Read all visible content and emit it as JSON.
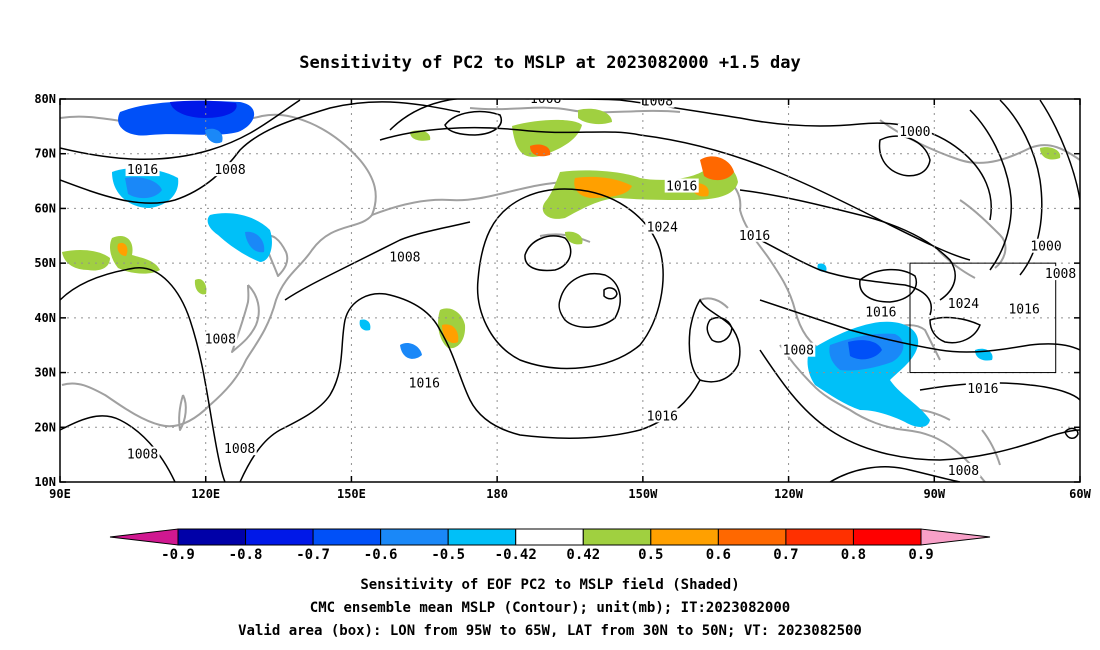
{
  "title": "Sensitivity of PC2 to MSLP at 2023082000 +1.5 day",
  "map": {
    "lon_range": [
      90,
      300
    ],
    "lat_range": [
      10,
      80
    ],
    "x_ticks": [
      {
        "lon": 90,
        "label": "90E"
      },
      {
        "lon": 120,
        "label": "120E"
      },
      {
        "lon": 150,
        "label": "150E"
      },
      {
        "lon": 180,
        "label": "180"
      },
      {
        "lon": 210,
        "label": "150W"
      },
      {
        "lon": 240,
        "label": "120W"
      },
      {
        "lon": 270,
        "label": "90W"
      },
      {
        "lon": 300,
        "label": "60W"
      }
    ],
    "y_ticks": [
      {
        "lat": 10,
        "label": "10N"
      },
      {
        "lat": 20,
        "label": "20N"
      },
      {
        "lat": 30,
        "label": "30N"
      },
      {
        "lat": 40,
        "label": "40N"
      },
      {
        "lat": 50,
        "label": "50N"
      },
      {
        "lat": 60,
        "label": "60N"
      },
      {
        "lat": 70,
        "label": "70N"
      },
      {
        "lat": 80,
        "label": "80N"
      }
    ],
    "grid": "dotted",
    "valid_box": {
      "lon_min": 265,
      "lon_max": 295,
      "lat_min": 30,
      "lat_max": 50
    },
    "contour_labels": [
      {
        "text": "1008",
        "lon": 190,
        "lat": 80
      },
      {
        "text": "1008",
        "lon": 213,
        "lat": 79.5
      },
      {
        "text": "1000",
        "lon": 266,
        "lat": 74
      },
      {
        "text": "1016",
        "lon": 107,
        "lat": 67
      },
      {
        "text": "1008",
        "lon": 125,
        "lat": 67
      },
      {
        "text": "1016",
        "lon": 218,
        "lat": 64
      },
      {
        "text": "1024",
        "lon": 214,
        "lat": 56.5
      },
      {
        "text": "1016",
        "lon": 233,
        "lat": 55
      },
      {
        "text": "1000",
        "lon": 293,
        "lat": 53
      },
      {
        "text": "1008",
        "lon": 296,
        "lat": 48
      },
      {
        "text": "1008",
        "lon": 161,
        "lat": 51
      },
      {
        "text": "1024",
        "lon": 276,
        "lat": 42.5
      },
      {
        "text": "1016",
        "lon": 288.5,
        "lat": 41.5
      },
      {
        "text": "1016",
        "lon": 259,
        "lat": 41
      },
      {
        "text": "1008",
        "lon": 123,
        "lat": 36
      },
      {
        "text": "1008",
        "lon": 242,
        "lat": 34
      },
      {
        "text": "1016",
        "lon": 165,
        "lat": 28
      },
      {
        "text": "1016",
        "lon": 280,
        "lat": 27
      },
      {
        "text": "1016",
        "lon": 214,
        "lat": 22
      },
      {
        "text": "1008",
        "lon": 127,
        "lat": 16
      },
      {
        "text": "1008",
        "lon": 107,
        "lat": 15
      },
      {
        "text": "1008",
        "lon": 276,
        "lat": 12
      }
    ]
  },
  "colorbar": {
    "labels": [
      "-0.9",
      "-0.8",
      "-0.7",
      "-0.6",
      "-0.5",
      "-0.42",
      "0.42",
      "0.5",
      "0.6",
      "0.7",
      "0.8",
      "0.9"
    ],
    "colors": [
      "#0000a8",
      "#0018e8",
      "#0050f8",
      "#1a88f8",
      "#00c0f8",
      "#ffffff",
      "#a0d040",
      "#ffa000",
      "#ff6800",
      "#ff3000",
      "#ff0000"
    ],
    "low_end_color": "#d01890",
    "high_end_color": "#f8a0c8"
  },
  "footer": {
    "line1": "Sensitivity of EOF PC2 to MSLP field (Shaded)",
    "line2": "CMC ensemble mean MSLP (Contour); unit(mb); IT:2023082000",
    "line3": "Valid area (box): LON from 95W to 65W, LAT from 30N to 50N; VT: 2023082500"
  }
}
